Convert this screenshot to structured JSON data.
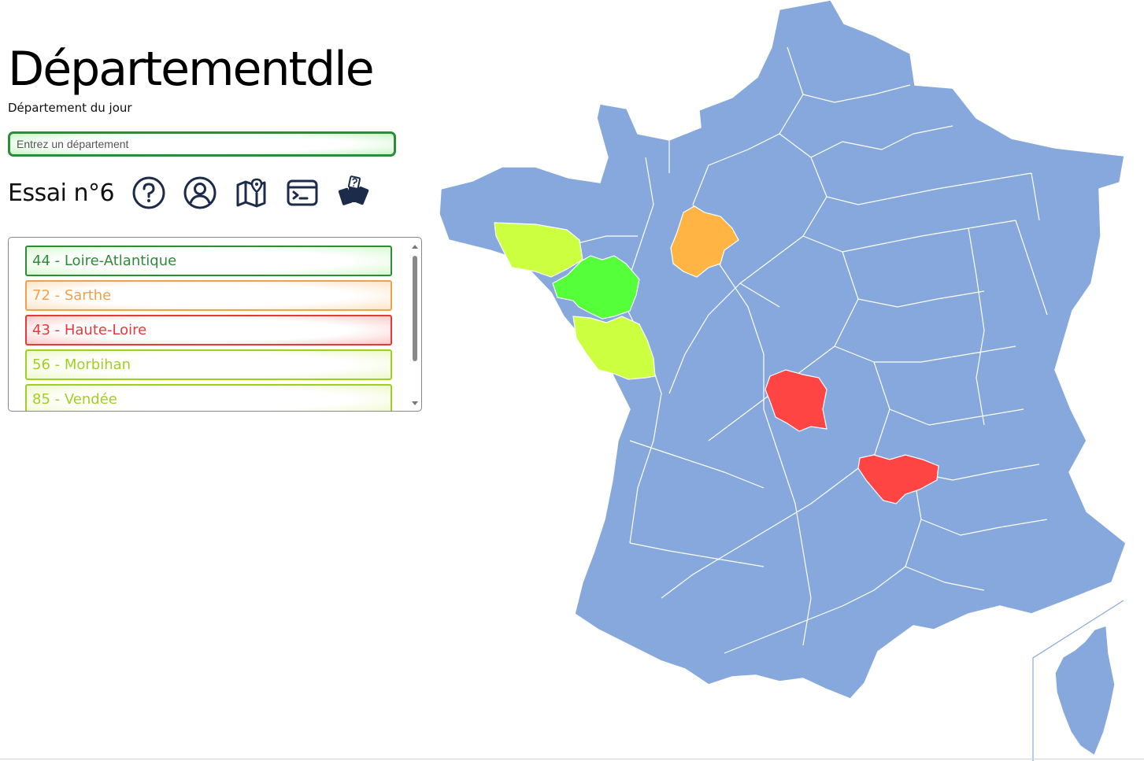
{
  "header": {
    "title": "Départementdle",
    "subtitle": "Département du jour"
  },
  "search": {
    "placeholder": "Entrez un département",
    "value": ""
  },
  "toolbar": {
    "attempt_label": "Essai n°6",
    "icons": [
      "help-icon",
      "profile-icon",
      "map-icon",
      "terminal-icon",
      "cards-icon"
    ]
  },
  "guesses": [
    {
      "label": "44 - Loire-Atlantique",
      "status": "correct",
      "color": "#2e8b3a"
    },
    {
      "label": "72 - Sarthe",
      "status": "close",
      "color": "#f0a24a"
    },
    {
      "label": "43 - Haute-Loire",
      "status": "far",
      "color": "#e33a3a"
    },
    {
      "label": "56 - Morbihan",
      "status": "near",
      "color": "#9fd020"
    },
    {
      "label": "85 - Vendée",
      "status": "near",
      "color": "#9fd020"
    }
  ],
  "map": {
    "base_color": "#87a8dc",
    "highlights": [
      {
        "name": "Loire-Atlantique",
        "color": "#55ff3a"
      },
      {
        "name": "Morbihan",
        "color": "#ccff3f"
      },
      {
        "name": "Vendée",
        "color": "#ccff3f"
      },
      {
        "name": "Sarthe",
        "color": "#ffb444"
      },
      {
        "name": "Creuse",
        "color": "#ff4444"
      },
      {
        "name": "Haute-Loire",
        "color": "#ff4444"
      }
    ]
  }
}
